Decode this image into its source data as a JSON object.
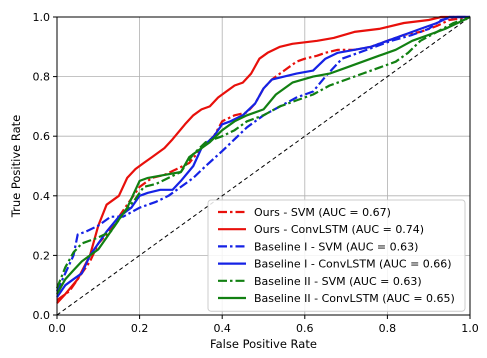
{
  "chart_data": {
    "type": "line",
    "title": "",
    "xlabel": "False Positive Rate",
    "ylabel": "True Positive Rate",
    "xlim": [
      0,
      1
    ],
    "ylim": [
      0,
      1
    ],
    "xticks": [
      0.0,
      0.2,
      0.4,
      0.6,
      0.8,
      1.0
    ],
    "yticks": [
      0.0,
      0.2,
      0.4,
      0.6,
      0.8,
      1.0
    ],
    "xtick_labels": [
      "0.0",
      "0.2",
      "0.4",
      "0.6",
      "0.8",
      "1.0"
    ],
    "ytick_labels": [
      "0.0",
      "0.2",
      "0.4",
      "0.6",
      "0.8",
      "1.0"
    ],
    "grid": true,
    "legend_position": "lower-right",
    "series": [
      {
        "name": "Ours - SVM (AUC = 0.67)",
        "color": "#e8100b",
        "style": "dashdot",
        "x": [
          0.0,
          0.03,
          0.05,
          0.08,
          0.1,
          0.12,
          0.15,
          0.17,
          0.2,
          0.23,
          0.26,
          0.29,
          0.32,
          0.35,
          0.38,
          0.4,
          0.43,
          0.46,
          0.48,
          0.5,
          0.52,
          0.55,
          0.58,
          0.6,
          0.63,
          0.65,
          0.68,
          0.72,
          0.76,
          0.8,
          0.84,
          0.88,
          0.92,
          0.95,
          1.0
        ],
        "y": [
          0.05,
          0.08,
          0.12,
          0.18,
          0.24,
          0.27,
          0.33,
          0.37,
          0.43,
          0.46,
          0.47,
          0.49,
          0.51,
          0.56,
          0.6,
          0.65,
          0.67,
          0.68,
          0.71,
          0.76,
          0.79,
          0.82,
          0.85,
          0.86,
          0.87,
          0.88,
          0.89,
          0.89,
          0.9,
          0.92,
          0.94,
          0.95,
          0.97,
          0.99,
          1.0
        ]
      },
      {
        "name": "Ours - ConvLSTM (AUC = 0.74)",
        "color": "#e8100b",
        "style": "solid",
        "x": [
          0.0,
          0.02,
          0.05,
          0.08,
          0.1,
          0.12,
          0.15,
          0.17,
          0.19,
          0.21,
          0.23,
          0.26,
          0.28,
          0.31,
          0.33,
          0.35,
          0.37,
          0.39,
          0.41,
          0.43,
          0.45,
          0.47,
          0.49,
          0.51,
          0.54,
          0.57,
          0.6,
          0.63,
          0.67,
          0.72,
          0.78,
          0.84,
          0.9,
          0.93,
          1.0
        ],
        "y": [
          0.04,
          0.07,
          0.12,
          0.2,
          0.3,
          0.37,
          0.4,
          0.46,
          0.49,
          0.51,
          0.53,
          0.56,
          0.59,
          0.64,
          0.67,
          0.69,
          0.7,
          0.73,
          0.75,
          0.77,
          0.78,
          0.81,
          0.86,
          0.88,
          0.9,
          0.91,
          0.915,
          0.92,
          0.93,
          0.95,
          0.96,
          0.98,
          0.99,
          1.0,
          1.0
        ]
      },
      {
        "name": "Baseline I - SVM (AUC = 0.63)",
        "color": "#1522e5",
        "style": "dashdot",
        "x": [
          0.0,
          0.02,
          0.04,
          0.05,
          0.07,
          0.1,
          0.13,
          0.16,
          0.2,
          0.24,
          0.27,
          0.3,
          0.33,
          0.36,
          0.4,
          0.43,
          0.46,
          0.5,
          0.54,
          0.58,
          0.62,
          0.65,
          0.69,
          0.73,
          0.77,
          0.81,
          0.86,
          0.9,
          0.93,
          0.96,
          1.0
        ],
        "y": [
          0.08,
          0.14,
          0.2,
          0.27,
          0.28,
          0.3,
          0.33,
          0.33,
          0.36,
          0.38,
          0.4,
          0.43,
          0.46,
          0.5,
          0.55,
          0.59,
          0.63,
          0.67,
          0.7,
          0.73,
          0.75,
          0.8,
          0.86,
          0.88,
          0.9,
          0.92,
          0.94,
          0.96,
          0.99,
          1.0,
          1.0
        ]
      },
      {
        "name": "Baseline I - ConvLSTM (AUC = 0.66)",
        "color": "#1522e5",
        "style": "solid",
        "x": [
          0.0,
          0.02,
          0.04,
          0.06,
          0.08,
          0.1,
          0.12,
          0.15,
          0.18,
          0.2,
          0.22,
          0.25,
          0.28,
          0.3,
          0.33,
          0.35,
          0.38,
          0.4,
          0.42,
          0.45,
          0.48,
          0.5,
          0.52,
          0.55,
          0.58,
          0.62,
          0.65,
          0.68,
          0.72,
          0.76,
          0.8,
          0.84,
          0.88,
          0.92,
          0.95,
          1.0
        ],
        "y": [
          0.06,
          0.1,
          0.12,
          0.14,
          0.2,
          0.24,
          0.28,
          0.33,
          0.36,
          0.4,
          0.41,
          0.42,
          0.42,
          0.45,
          0.5,
          0.56,
          0.6,
          0.64,
          0.65,
          0.67,
          0.71,
          0.76,
          0.79,
          0.8,
          0.81,
          0.82,
          0.86,
          0.88,
          0.89,
          0.9,
          0.92,
          0.94,
          0.96,
          0.98,
          1.0,
          1.0
        ]
      },
      {
        "name": "Baseline II - SVM (AUC = 0.63)",
        "color": "#128012",
        "style": "dashdot",
        "x": [
          0.0,
          0.02,
          0.04,
          0.06,
          0.08,
          0.1,
          0.13,
          0.16,
          0.19,
          0.21,
          0.24,
          0.27,
          0.3,
          0.33,
          0.36,
          0.4,
          0.43,
          0.46,
          0.5,
          0.54,
          0.58,
          0.62,
          0.66,
          0.7,
          0.74,
          0.78,
          0.82,
          0.85,
          0.88,
          0.92,
          0.96,
          1.0
        ],
        "y": [
          0.09,
          0.16,
          0.21,
          0.24,
          0.25,
          0.26,
          0.28,
          0.34,
          0.39,
          0.43,
          0.44,
          0.46,
          0.48,
          0.54,
          0.58,
          0.6,
          0.62,
          0.65,
          0.67,
          0.7,
          0.72,
          0.74,
          0.77,
          0.79,
          0.81,
          0.83,
          0.85,
          0.88,
          0.92,
          0.95,
          0.98,
          1.0
        ]
      },
      {
        "name": "Baseline II - ConvLSTM (AUC = 0.65)",
        "color": "#128012",
        "style": "solid",
        "x": [
          0.0,
          0.02,
          0.04,
          0.06,
          0.08,
          0.1,
          0.12,
          0.15,
          0.17,
          0.2,
          0.22,
          0.26,
          0.3,
          0.32,
          0.34,
          0.37,
          0.4,
          0.43,
          0.46,
          0.5,
          0.53,
          0.57,
          0.62,
          0.66,
          0.7,
          0.74,
          0.78,
          0.82,
          0.86,
          0.9,
          0.94,
          0.97,
          1.0
        ],
        "y": [
          0.07,
          0.12,
          0.15,
          0.18,
          0.2,
          0.22,
          0.26,
          0.32,
          0.36,
          0.45,
          0.46,
          0.47,
          0.48,
          0.53,
          0.55,
          0.58,
          0.62,
          0.65,
          0.67,
          0.69,
          0.74,
          0.78,
          0.8,
          0.81,
          0.83,
          0.85,
          0.87,
          0.89,
          0.92,
          0.94,
          0.96,
          0.98,
          1.0
        ]
      }
    ],
    "reference_line": {
      "x": [
        0,
        1
      ],
      "y": [
        0,
        1
      ],
      "color": "#000000",
      "style": "dashed"
    }
  }
}
